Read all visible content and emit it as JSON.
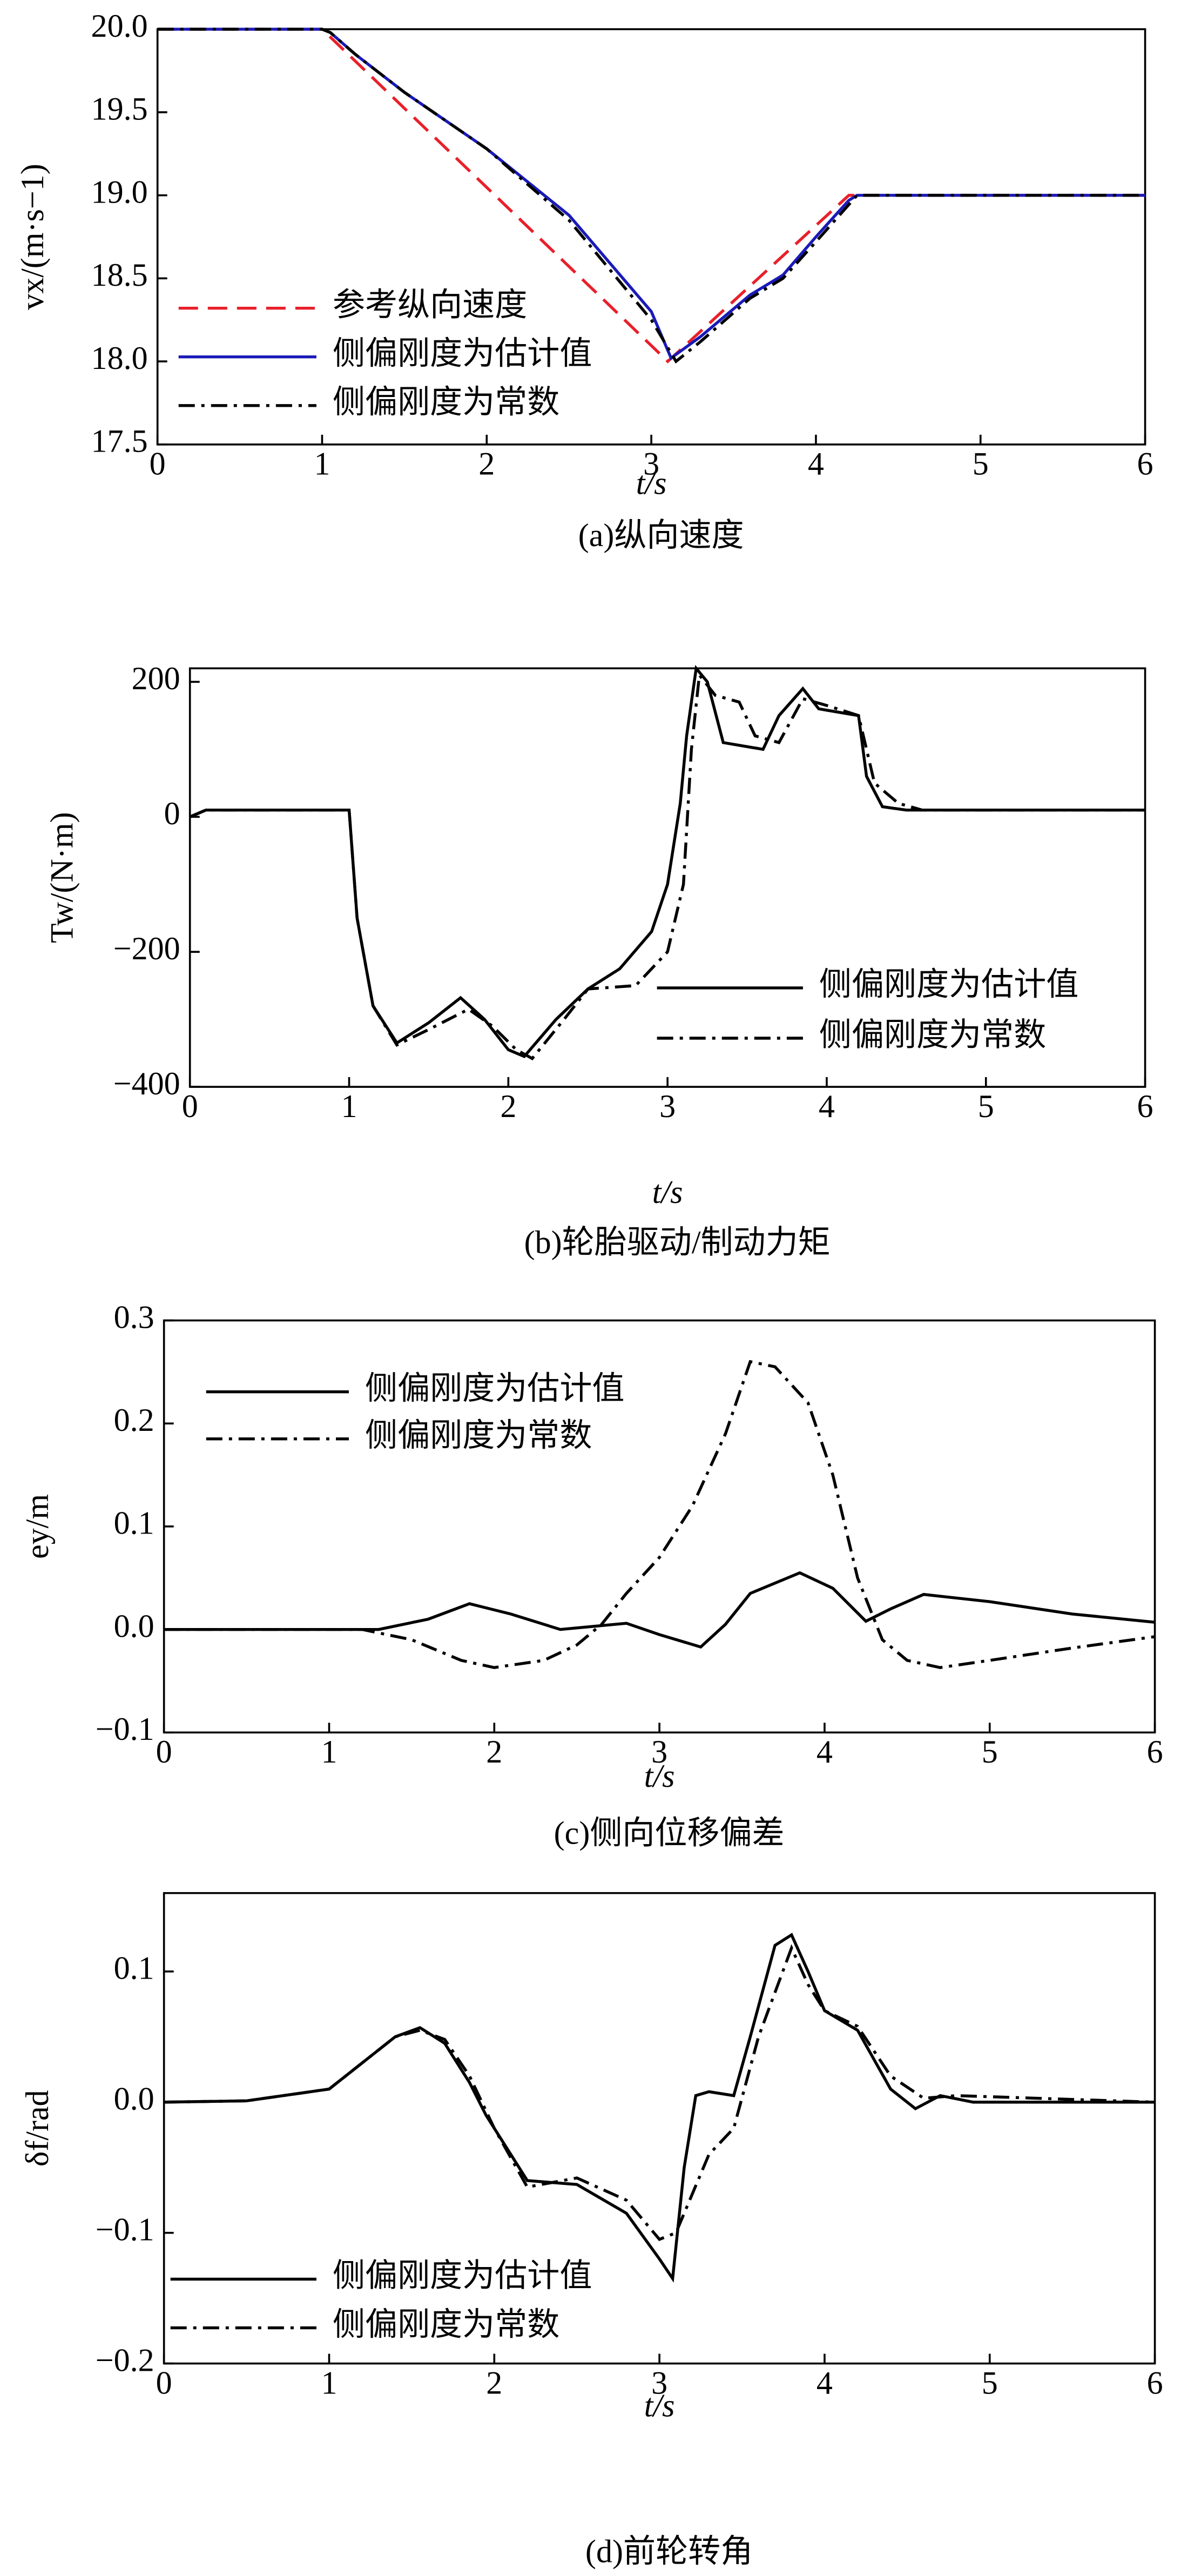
{
  "chart_data": [
    {
      "type": "line",
      "title": "(a)纵向速度",
      "xlabel": "t/s",
      "ylabel": "vx/(m·s−1)",
      "xlim": [
        0,
        6
      ],
      "xticks": [
        0,
        1,
        2,
        3,
        4,
        5,
        6
      ],
      "ylim": [
        17.5,
        20
      ],
      "yticks": [
        17.5,
        {
          "value": 18,
          "label": "18.0"
        },
        18.5,
        {
          "value": 19,
          "label": "19.0"
        },
        19.5,
        {
          "value": 20,
          "label": "20.0"
        }
      ],
      "series": [
        {
          "name": "参考纵向速度",
          "color": "#e8202a",
          "linestyle": "dashed",
          "x": [
            0,
            1,
            3.1,
            4.2,
            6
          ],
          "values": [
            20,
            20,
            18,
            19,
            19
          ]
        },
        {
          "name": "侧偏刚度为估计值",
          "color": "#1a1ab8",
          "linestyle": "solid",
          "x": [
            0,
            1,
            1.05,
            1.2,
            1.5,
            2,
            2.5,
            3,
            3.12,
            3.3,
            3.6,
            3.8,
            4,
            4.2,
            4.25,
            4.4,
            6
          ],
          "values": [
            20,
            20,
            19.98,
            19.85,
            19.62,
            19.28,
            18.88,
            18.3,
            18.02,
            18.15,
            18.4,
            18.52,
            18.75,
            18.97,
            19,
            19,
            19
          ]
        },
        {
          "name": "侧偏刚度为常数",
          "color": "#000000",
          "linestyle": "dashdot",
          "x": [
            0,
            1,
            1.05,
            1.2,
            1.5,
            2,
            2.5,
            3,
            3.15,
            3.3,
            3.6,
            3.8,
            4,
            4.25,
            4.4,
            6
          ],
          "values": [
            20,
            20,
            19.98,
            19.85,
            19.62,
            19.28,
            18.85,
            18.25,
            18.0,
            18.12,
            18.38,
            18.5,
            18.72,
            19,
            19,
            19
          ]
        }
      ]
    },
    {
      "type": "line",
      "title": "(b)轮胎驱动/制动力矩",
      "xlabel": "t/s",
      "ylabel": "Tw/(N·m)",
      "xlim": [
        0,
        6
      ],
      "xticks": [
        0,
        1,
        2,
        3,
        4,
        5,
        6
      ],
      "ylim": [
        -400,
        220
      ],
      "yticks": [
        {
          "value": -400,
          "label": "−400"
        },
        {
          "value": -200,
          "label": "−200"
        },
        0,
        200
      ],
      "series": [
        {
          "name": "侧偏刚度为估计值",
          "color": "#000000",
          "linestyle": "solid",
          "x": [
            0,
            0.05,
            0.1,
            1,
            1.05,
            1.15,
            1.3,
            1.5,
            1.7,
            1.85,
            2,
            2.1,
            2.3,
            2.5,
            2.7,
            2.9,
            3,
            3.08,
            3.12,
            3.18,
            3.25,
            3.35,
            3.6,
            3.7,
            3.85,
            3.95,
            4.2,
            4.25,
            4.35,
            4.5,
            6
          ],
          "values": [
            0,
            5,
            10,
            10,
            -150,
            -280,
            -335,
            -305,
            -268,
            -300,
            -345,
            -355,
            -300,
            -255,
            -225,
            -170,
            -100,
            20,
            120,
            220,
            200,
            110,
            100,
            150,
            190,
            160,
            150,
            60,
            15,
            10,
            10
          ]
        },
        {
          "name": "侧偏刚度为常数",
          "color": "#000000",
          "linestyle": "dashdot",
          "x": [
            0,
            0.05,
            0.1,
            1,
            1.05,
            1.15,
            1.3,
            1.5,
            1.75,
            1.9,
            2.05,
            2.15,
            2.35,
            2.5,
            2.8,
            3.0,
            3.1,
            3.15,
            3.2,
            3.3,
            3.45,
            3.55,
            3.7,
            3.85,
            4.0,
            4.2,
            4.3,
            4.45,
            4.6,
            6
          ],
          "values": [
            0,
            5,
            10,
            10,
            -150,
            -280,
            -338,
            -315,
            -285,
            -310,
            -345,
            -358,
            -300,
            -255,
            -250,
            -200,
            -100,
            100,
            210,
            180,
            170,
            120,
            110,
            175,
            165,
            150,
            50,
            20,
            10,
            10
          ]
        }
      ]
    },
    {
      "type": "line",
      "title": "(c)侧向位移偏差",
      "xlabel": "t/s",
      "ylabel": "ey/m",
      "xlim": [
        0,
        6
      ],
      "xticks": [
        0,
        1,
        2,
        3,
        4,
        5,
        6
      ],
      "ylim": [
        -0.1,
        0.3
      ],
      "yticks": [
        {
          "value": -0.1,
          "label": "−0.1"
        },
        {
          "value": 0,
          "label": "0.0"
        },
        0.1,
        0.2,
        0.3
      ],
      "series": [
        {
          "name": "侧偏刚度为估计值",
          "color": "#000000",
          "linestyle": "solid",
          "x": [
            0,
            1,
            1.3,
            1.6,
            1.85,
            2.1,
            2.4,
            2.6,
            2.8,
            3,
            3.25,
            3.4,
            3.55,
            3.85,
            4.05,
            4.25,
            4.4,
            4.6,
            5,
            5.5,
            6
          ],
          "values": [
            0,
            0,
            0,
            0.01,
            0.025,
            0.015,
            0,
            0.003,
            0.006,
            -0.005,
            -0.017,
            0.005,
            0.035,
            0.055,
            0.04,
            0.008,
            0.02,
            0.034,
            0.027,
            0.015,
            0.007
          ]
        },
        {
          "name": "侧偏刚度为常数",
          "color": "#000000",
          "linestyle": "dashdot",
          "x": [
            0,
            1.2,
            1.5,
            1.8,
            2,
            2.3,
            2.5,
            2.65,
            2.8,
            3,
            3.2,
            3.4,
            3.55,
            3.7,
            3.9,
            4.05,
            4.2,
            4.35,
            4.5,
            4.7,
            5,
            5.5,
            6
          ],
          "values": [
            0,
            0,
            -0.01,
            -0.03,
            -0.037,
            -0.03,
            -0.015,
            0.005,
            0.035,
            0.07,
            0.12,
            0.19,
            0.26,
            0.255,
            0.22,
            0.15,
            0.05,
            -0.01,
            -0.03,
            -0.037,
            -0.03,
            -0.018,
            -0.007
          ]
        }
      ]
    },
    {
      "type": "line",
      "title": "(d)前轮转角",
      "xlabel": "t/s",
      "ylabel": "δf/rad",
      "xlim": [
        0,
        6
      ],
      "xticks": [
        0,
        1,
        2,
        3,
        4,
        5,
        6
      ],
      "ylim": [
        -0.2,
        0.16
      ],
      "yticks": [
        {
          "value": -0.2,
          "label": "−0.2"
        },
        {
          "value": -0.1,
          "label": "−0.1"
        },
        {
          "value": 0,
          "label": "0.0"
        },
        0.1
      ],
      "series": [
        {
          "name": "侧偏刚度为估计值",
          "color": "#000000",
          "linestyle": "solid",
          "x": [
            0,
            0.5,
            1,
            1.2,
            1.4,
            1.55,
            1.7,
            1.85,
            1.95,
            2.2,
            2.5,
            2.8,
            3,
            3.08,
            3.15,
            3.22,
            3.3,
            3.45,
            3.55,
            3.7,
            3.8,
            3.9,
            4.0,
            4.2,
            4.4,
            4.55,
            4.7,
            4.9,
            6
          ],
          "values": [
            0,
            0.001,
            0.01,
            0.03,
            0.05,
            0.057,
            0.045,
            0.015,
            -0.01,
            -0.06,
            -0.063,
            -0.085,
            -0.12,
            -0.135,
            -0.05,
            0.005,
            0.008,
            0.005,
            0.05,
            0.12,
            0.128,
            0.1,
            0.07,
            0.055,
            0.01,
            -0.005,
            0.005,
            0,
            0
          ]
        },
        {
          "name": "侧偏刚度为常数",
          "color": "#000000",
          "linestyle": "dashdot",
          "x": [
            0,
            0.5,
            1,
            1.2,
            1.4,
            1.55,
            1.7,
            1.85,
            2.0,
            2.2,
            2.5,
            2.8,
            3,
            3.1,
            3.2,
            3.3,
            3.45,
            3.6,
            3.8,
            3.9,
            4.0,
            4.2,
            4.4,
            4.6,
            4.8,
            6
          ],
          "values": [
            0,
            0.001,
            0.01,
            0.03,
            0.05,
            0.055,
            0.048,
            0.02,
            -0.02,
            -0.065,
            -0.058,
            -0.075,
            -0.105,
            -0.1,
            -0.07,
            -0.04,
            -0.02,
            0.05,
            0.118,
            0.09,
            0.07,
            0.058,
            0.02,
            0.003,
            0.005,
            0
          ]
        }
      ]
    }
  ]
}
